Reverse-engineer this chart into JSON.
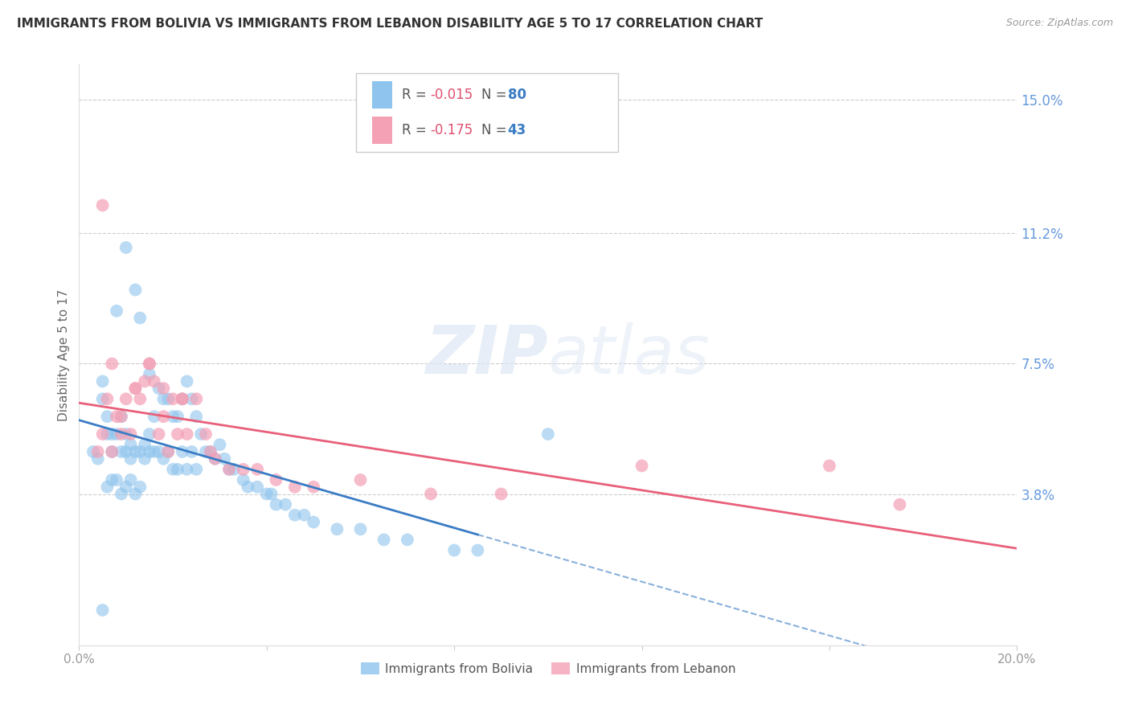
{
  "title": "IMMIGRANTS FROM BOLIVIA VS IMMIGRANTS FROM LEBANON DISABILITY AGE 5 TO 17 CORRELATION CHART",
  "source": "Source: ZipAtlas.com",
  "ylabel": "Disability Age 5 to 17",
  "xlim": [
    0.0,
    0.2
  ],
  "ylim": [
    -0.005,
    0.16
  ],
  "right_yticks": [
    0.15,
    0.112,
    0.075,
    0.038
  ],
  "right_yticklabels": [
    "15.0%",
    "11.2%",
    "7.5%",
    "3.8%"
  ],
  "xticks": [
    0.0,
    0.04,
    0.08,
    0.12,
    0.16,
    0.2
  ],
  "xticklabels": [
    "0.0%",
    "",
    "",
    "",
    "",
    "20.0%"
  ],
  "bolivia_R": -0.015,
  "bolivia_N": 80,
  "lebanon_R": -0.175,
  "lebanon_N": 43,
  "bolivia_color": "#8EC4ED",
  "lebanon_color": "#F4A0B5",
  "bolivia_line_color": "#3A7CC4",
  "lebanon_line_color": "#E8607A",
  "watermark": "ZIPatlas",
  "bolivia_scatter_x": [
    0.003,
    0.004,
    0.005,
    0.005,
    0.006,
    0.006,
    0.007,
    0.007,
    0.008,
    0.008,
    0.009,
    0.009,
    0.01,
    0.01,
    0.01,
    0.011,
    0.011,
    0.012,
    0.012,
    0.013,
    0.013,
    0.014,
    0.014,
    0.015,
    0.015,
    0.015,
    0.016,
    0.016,
    0.017,
    0.017,
    0.018,
    0.018,
    0.019,
    0.019,
    0.02,
    0.02,
    0.021,
    0.021,
    0.022,
    0.022,
    0.023,
    0.023,
    0.024,
    0.024,
    0.025,
    0.025,
    0.026,
    0.027,
    0.028,
    0.029,
    0.03,
    0.031,
    0.032,
    0.033,
    0.035,
    0.036,
    0.038,
    0.04,
    0.041,
    0.042,
    0.044,
    0.046,
    0.048,
    0.05,
    0.055,
    0.06,
    0.065,
    0.07,
    0.08,
    0.085,
    0.01,
    0.012,
    0.008,
    0.006,
    0.007,
    0.009,
    0.011,
    0.013,
    0.1,
    0.005
  ],
  "bolivia_scatter_y": [
    0.05,
    0.048,
    0.065,
    0.07,
    0.055,
    0.06,
    0.05,
    0.055,
    0.09,
    0.055,
    0.06,
    0.05,
    0.108,
    0.05,
    0.055,
    0.052,
    0.048,
    0.096,
    0.05,
    0.088,
    0.05,
    0.052,
    0.048,
    0.072,
    0.055,
    0.05,
    0.06,
    0.05,
    0.068,
    0.05,
    0.065,
    0.048,
    0.065,
    0.05,
    0.06,
    0.045,
    0.06,
    0.045,
    0.065,
    0.05,
    0.07,
    0.045,
    0.065,
    0.05,
    0.06,
    0.045,
    0.055,
    0.05,
    0.05,
    0.048,
    0.052,
    0.048,
    0.045,
    0.045,
    0.042,
    0.04,
    0.04,
    0.038,
    0.038,
    0.035,
    0.035,
    0.032,
    0.032,
    0.03,
    0.028,
    0.028,
    0.025,
    0.025,
    0.022,
    0.022,
    0.04,
    0.038,
    0.042,
    0.04,
    0.042,
    0.038,
    0.042,
    0.04,
    0.055,
    0.005
  ],
  "lebanon_scatter_x": [
    0.004,
    0.005,
    0.006,
    0.007,
    0.008,
    0.009,
    0.01,
    0.011,
    0.012,
    0.013,
    0.014,
    0.015,
    0.016,
    0.017,
    0.018,
    0.019,
    0.02,
    0.021,
    0.022,
    0.023,
    0.025,
    0.027,
    0.029,
    0.032,
    0.035,
    0.038,
    0.042,
    0.046,
    0.05,
    0.06,
    0.075,
    0.09,
    0.12,
    0.16,
    0.175,
    0.007,
    0.009,
    0.012,
    0.015,
    0.018,
    0.022,
    0.028,
    0.005
  ],
  "lebanon_scatter_y": [
    0.05,
    0.055,
    0.065,
    0.05,
    0.06,
    0.055,
    0.065,
    0.055,
    0.068,
    0.065,
    0.07,
    0.075,
    0.07,
    0.055,
    0.068,
    0.05,
    0.065,
    0.055,
    0.065,
    0.055,
    0.065,
    0.055,
    0.048,
    0.045,
    0.045,
    0.045,
    0.042,
    0.04,
    0.04,
    0.042,
    0.038,
    0.038,
    0.046,
    0.046,
    0.035,
    0.075,
    0.06,
    0.068,
    0.075,
    0.06,
    0.065,
    0.05,
    0.12
  ]
}
